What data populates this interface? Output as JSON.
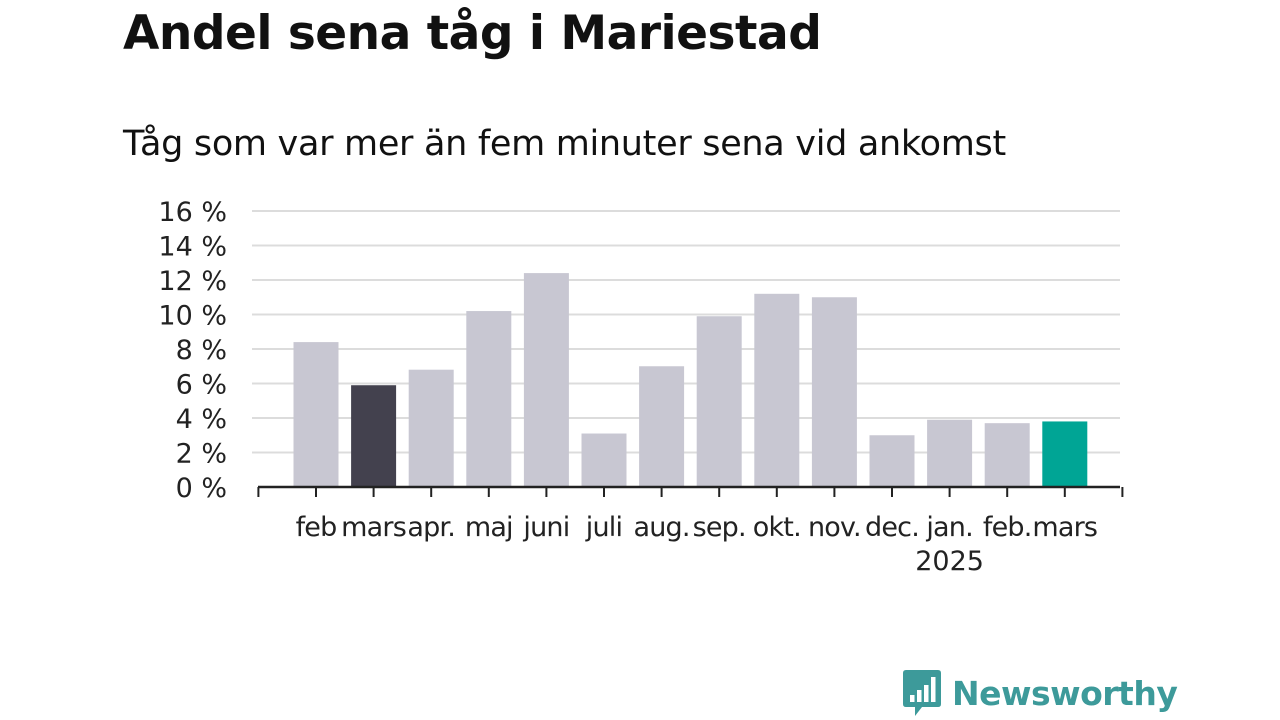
{
  "title": "Andel sena tåg i Mariestad",
  "subtitle": "Tåg som var mer än fem minuter sena vid ankomst",
  "brand": {
    "name": "Newsworthy",
    "icon": "bar-chart-speech-bubble-icon",
    "color": "#3d9a9a"
  },
  "colors": {
    "default_bar": "#c8c7d2",
    "highlight_prev": "#43414e",
    "highlight_current": "#00a595",
    "grid": "#dcdcdc",
    "axis": "#222222"
  },
  "chart_data": {
    "type": "bar",
    "title": "Andel sena tåg i Mariestad",
    "subtitle": "Tåg som var mer än fem minuter sena vid ankomst",
    "categories": [
      "feb",
      "mars",
      "apr.",
      "maj",
      "juni",
      "juli",
      "aug.",
      "sep.",
      "okt.",
      "nov.",
      "dec.",
      "jan.",
      "feb.",
      "mars"
    ],
    "year_labels": [
      {
        "index": 11,
        "label": "2025"
      }
    ],
    "values": [
      8.4,
      5.9,
      6.8,
      10.2,
      12.4,
      3.1,
      7.0,
      9.9,
      11.2,
      11.0,
      3.0,
      3.9,
      3.7,
      3.8
    ],
    "highlight": [
      {
        "index": 1,
        "role": "previous"
      },
      {
        "index": 13,
        "role": "current"
      }
    ],
    "yticks": [
      "0 %",
      "2 %",
      "4 %",
      "6 %",
      "8 %",
      "10 %",
      "12 %",
      "14 %",
      "16 %"
    ],
    "ylim": [
      0,
      16
    ],
    "ytick_step": 2,
    "grid": true,
    "legend": "none"
  }
}
